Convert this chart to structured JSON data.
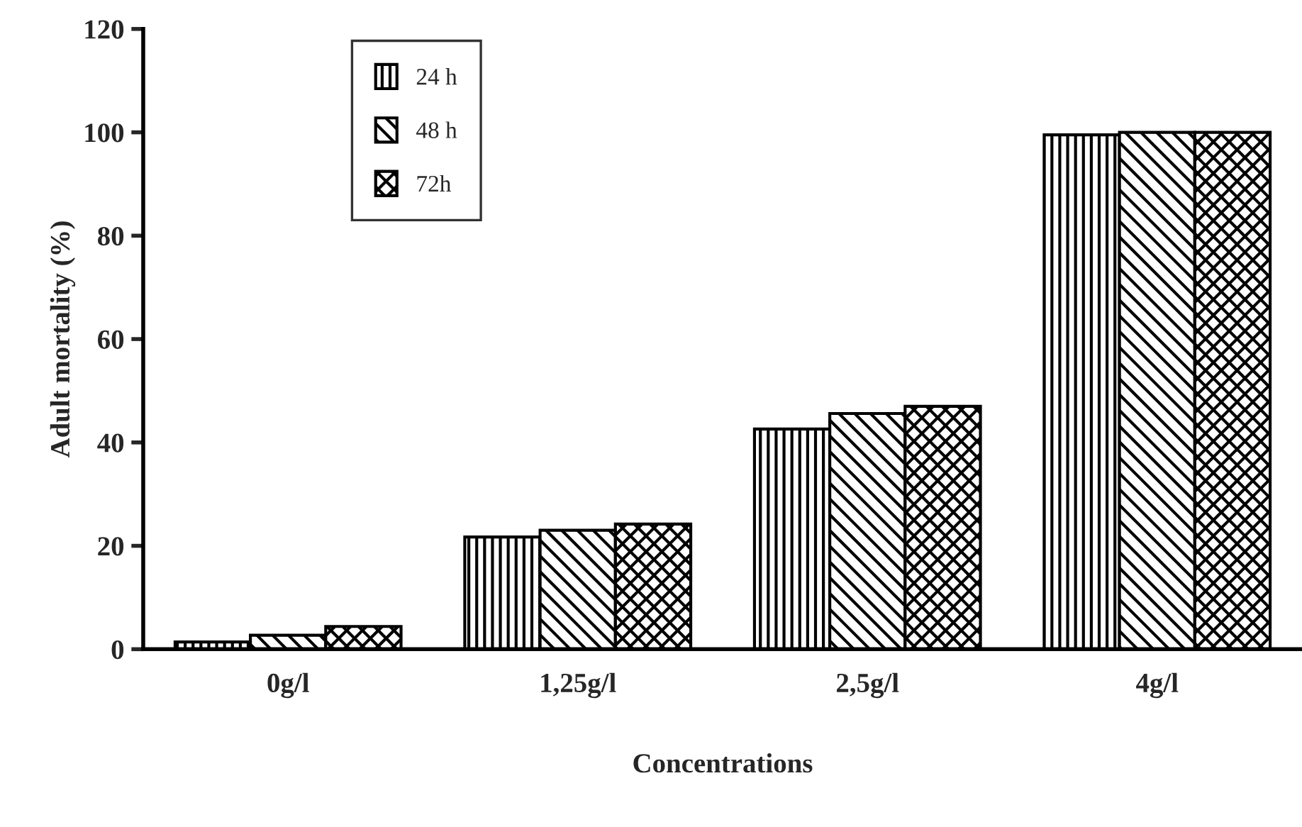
{
  "chart_data": {
    "type": "bar",
    "xlabel": "Concentrations",
    "ylabel": "Adult mortality (%)",
    "categories": [
      "0g/l",
      "1,25g/l",
      "2,5g/l",
      "4g/l"
    ],
    "series": [
      {
        "name": "24 h",
        "color": "#000000",
        "values": [
          1.4,
          21.7,
          42.6,
          99.5
        ]
      },
      {
        "name": "48 h",
        "color": "#000000",
        "values": [
          2.7,
          23,
          45.6,
          100
        ]
      },
      {
        "name": "72h",
        "color": "#000000",
        "values": [
          4.4,
          24.2,
          47,
          100
        ]
      }
    ],
    "ylim": [
      0,
      120
    ],
    "yticks": [
      0,
      20,
      40,
      60,
      80,
      100,
      120
    ],
    "grid": false,
    "legend": "top left"
  }
}
